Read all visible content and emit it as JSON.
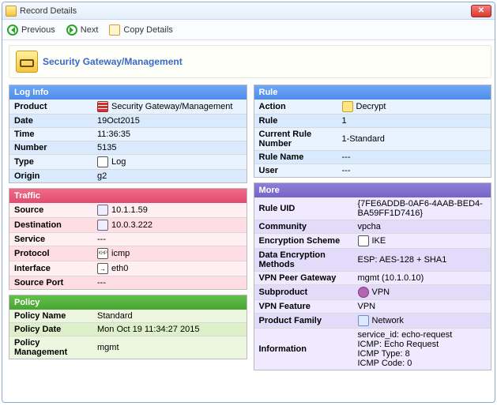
{
  "window": {
    "title": "Record Details"
  },
  "toolbar": {
    "previous": "Previous",
    "next": "Next",
    "copy": "Copy Details"
  },
  "header": {
    "title": "Security Gateway/Management"
  },
  "log": {
    "title": "Log Info",
    "product_k": "Product",
    "product_v": "Security Gateway/Management",
    "date_k": "Date",
    "date_v": "19Oct2015",
    "time_k": "Time",
    "time_v": "11:36:35",
    "number_k": "Number",
    "number_v": "5135",
    "type_k": "Type",
    "type_v": "Log",
    "origin_k": "Origin",
    "origin_v": "g2"
  },
  "traffic": {
    "title": "Traffic",
    "source_k": "Source",
    "source_v": "10.1.1.59",
    "dest_k": "Destination",
    "dest_v": "10.0.3.222",
    "service_k": "Service",
    "service_v": "---",
    "protocol_k": "Protocol",
    "protocol_v": "icmp",
    "iface_k": "Interface",
    "iface_v": "eth0",
    "sport_k": "Source Port",
    "sport_v": "---"
  },
  "policy": {
    "title": "Policy",
    "name_k": "Policy Name",
    "name_v": "Standard",
    "date_k": "Policy Date",
    "date_v": "Mon Oct 19 11:34:27 2015",
    "mgmt_k": "Policy Management",
    "mgmt_v": "mgmt"
  },
  "rule": {
    "title": "Rule",
    "action_k": "Action",
    "action_v": "Decrypt",
    "rule_k": "Rule",
    "rule_v": "1",
    "crn_k": "Current Rule Number",
    "crn_v": "1-Standard",
    "rname_k": "Rule Name",
    "rname_v": "---",
    "user_k": "User",
    "user_v": "---"
  },
  "more": {
    "title": "More",
    "uid_k": "Rule UID",
    "uid_v": "{7FE6ADDB-0AF6-4AAB-BED4-BA59FF1D7416}",
    "comm_k": "Community",
    "comm_v": "vpcha",
    "enc_k": "Encryption Scheme",
    "enc_v": "IKE",
    "dem_k": "Data Encryption Methods",
    "dem_v": "ESP: AES-128 + SHA1",
    "peer_k": "VPN Peer Gateway",
    "peer_v": "mgmt (10.1.0.10)",
    "sub_k": "Subproduct",
    "sub_v": "VPN",
    "feat_k": "VPN Feature",
    "feat_v": "VPN",
    "fam_k": "Product Family",
    "fam_v": "Network",
    "info_k": "Information",
    "info_v": "service_id: echo-request\nICMP: Echo Request\nICMP Type: 8\nICMP Code: 0"
  }
}
